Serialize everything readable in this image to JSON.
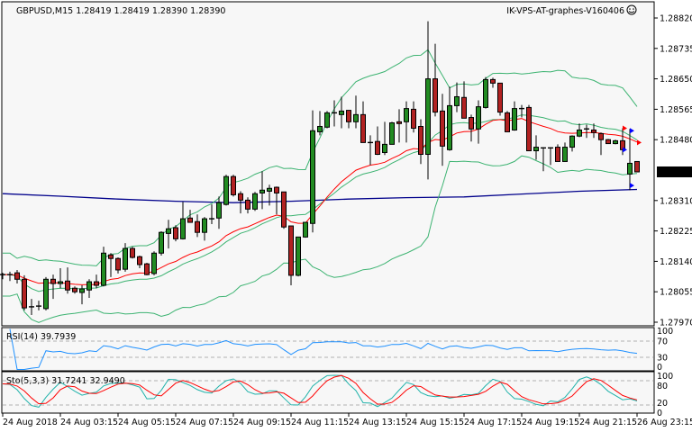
{
  "header": {
    "symbol_info": "GBPUSD,M15  1.28419 1.28419 1.28390 1.28390",
    "expert_label": "IK-VPS-AT-graphes-V160406",
    "expert_icon": "smiley-face-icon"
  },
  "colors": {
    "background": "#f7f7f7",
    "bull_candle": "#228b22",
    "bear_candle": "#b22222",
    "bollinger": "#3cb371",
    "moving_average": "#ff0000",
    "long_moving_average": "#00008b",
    "rsi_line": "#1e90ff",
    "sto_main": "#20b2aa",
    "sto_signal": "#ff0000",
    "current_price_bg": "#000000"
  },
  "chart_data": [
    {
      "type": "candlestick",
      "title": "GBPUSD,M15",
      "ylim": [
        1.2797,
        1.2882
      ],
      "y_ticks": [
        "1.28820",
        "1.28735",
        "1.28650",
        "1.28565",
        "1.28480",
        "1.28310",
        "1.28225",
        "1.28140",
        "1.28055",
        "1.27970"
      ],
      "current_price": "1.28390",
      "x_ticks": [
        "24 Aug 2018",
        "24 Aug 03:15",
        "24 Aug 05:15",
        "24 Aug 07:15",
        "24 Aug 09:15",
        "24 Aug 11:15",
        "24 Aug 13:15",
        "24 Aug 15:15",
        "24 Aug 17:15",
        "24 Aug 19:15",
        "24 Aug 21:15",
        "26 Aug 23:15"
      ],
      "ohlc": [
        [
          1.28101,
          1.28108,
          1.2809,
          1.28103
        ],
        [
          1.28103,
          1.28111,
          1.28085,
          1.28103
        ],
        [
          1.28108,
          1.28116,
          1.28078,
          1.2809
        ],
        [
          1.2809,
          1.28101,
          1.28003,
          1.2801
        ],
        [
          1.28013,
          1.28035,
          1.2799,
          1.28013
        ],
        [
          1.28013,
          1.2803,
          1.28003,
          1.28015
        ],
        [
          1.28008,
          1.28096,
          1.28003,
          1.2809
        ],
        [
          1.2809,
          1.28103,
          1.28035,
          1.28078
        ],
        [
          1.28078,
          1.28121,
          1.28065,
          1.28083
        ],
        [
          1.28085,
          1.28123,
          1.2805,
          1.2806
        ],
        [
          1.28065,
          1.2807,
          1.2805,
          1.28055
        ],
        [
          1.28053,
          1.28073,
          1.2802,
          1.28063
        ],
        [
          1.2806,
          1.2809,
          1.28038,
          1.28083
        ],
        [
          1.28083,
          1.28103,
          1.28065,
          1.28073
        ],
        [
          1.28073,
          1.28181,
          1.2807,
          1.28163
        ],
        [
          1.28158,
          1.28163,
          1.28096,
          1.28148
        ],
        [
          1.28148,
          1.28151,
          1.28106,
          1.28116
        ],
        [
          1.28118,
          1.28191,
          1.28111,
          1.28176
        ],
        [
          1.28176,
          1.28181,
          1.28148,
          1.28151
        ],
        [
          1.28153,
          1.28156,
          1.28121,
          1.28131
        ],
        [
          1.28133,
          1.28136,
          1.28101,
          1.28103
        ],
        [
          1.28106,
          1.28168,
          1.28101,
          1.28163
        ],
        [
          1.28163,
          1.28224,
          1.28156,
          1.28221
        ],
        [
          1.28218,
          1.28256,
          1.28176,
          1.28231
        ],
        [
          1.28234,
          1.28241,
          1.28196,
          1.28203
        ],
        [
          1.28203,
          1.28306,
          1.28201,
          1.28259
        ],
        [
          1.28261,
          1.28284,
          1.28249,
          1.28249
        ],
        [
          1.28251,
          1.28271,
          1.28208,
          1.28221
        ],
        [
          1.28221,
          1.28264,
          1.28198,
          1.28259
        ],
        [
          1.28259,
          1.28299,
          1.28244,
          1.28259
        ],
        [
          1.28261,
          1.28321,
          1.28231,
          1.28304
        ],
        [
          1.28299,
          1.28382,
          1.28296,
          1.28377
        ],
        [
          1.28377,
          1.28382,
          1.28321,
          1.28326
        ],
        [
          1.28329,
          1.28336,
          1.28274,
          1.28311
        ],
        [
          1.28311,
          1.28319,
          1.28274,
          1.28286
        ],
        [
          1.28286,
          1.28334,
          1.28281,
          1.28329
        ],
        [
          1.28331,
          1.28392,
          1.28286,
          1.28339
        ],
        [
          1.28336,
          1.28354,
          1.28296,
          1.28344
        ],
        [
          1.28347,
          1.28349,
          1.28271,
          1.28331
        ],
        [
          1.28334,
          1.28334,
          1.28231,
          1.28236
        ],
        [
          1.28239,
          1.28239,
          1.28073,
          1.28101
        ],
        [
          1.28101,
          1.28208,
          1.28098,
          1.28208
        ],
        [
          1.28208,
          1.28249,
          1.28206,
          1.28249
        ],
        [
          1.28246,
          1.28562,
          1.28221,
          1.28505
        ],
        [
          1.28502,
          1.2856,
          1.28492,
          1.28517
        ],
        [
          1.28515,
          1.2856,
          1.28512,
          1.28555
        ],
        [
          1.28555,
          1.2859,
          1.28517,
          1.28555
        ],
        [
          1.2855,
          1.286,
          1.28512,
          1.2856
        ],
        [
          1.28562,
          1.28562,
          1.28512,
          1.2853
        ],
        [
          1.2853,
          1.28603,
          1.28512,
          1.2855
        ],
        [
          1.2855,
          1.28587,
          1.28472,
          1.28472
        ],
        [
          1.28472,
          1.28492,
          1.28409,
          1.28472
        ],
        [
          1.28475,
          1.28517,
          1.28437,
          1.28439
        ],
        [
          1.28444,
          1.2853,
          1.28437,
          1.28467
        ],
        [
          1.28467,
          1.2853,
          1.28467,
          1.28527
        ],
        [
          1.2853,
          1.28565,
          1.28472,
          1.28525
        ],
        [
          1.2853,
          1.28587,
          1.28472,
          1.28567
        ],
        [
          1.28565,
          1.28587,
          1.285,
          1.28512
        ],
        [
          1.28517,
          1.28537,
          1.28412,
          1.28439
        ],
        [
          1.28439,
          1.28811,
          1.28369,
          1.2865
        ],
        [
          1.2865,
          1.28748,
          1.28545,
          1.28557
        ],
        [
          1.2856,
          1.28608,
          1.28407,
          1.28462
        ],
        [
          1.28452,
          1.28628,
          1.28449,
          1.28575
        ],
        [
          1.28575,
          1.2864,
          1.28557,
          1.286
        ],
        [
          1.28598,
          1.28643,
          1.2854,
          1.2854
        ],
        [
          1.28542,
          1.2855,
          1.28475,
          1.2851
        ],
        [
          1.2851,
          1.2859,
          1.28469,
          1.28572
        ],
        [
          1.2857,
          1.28655,
          1.28567,
          1.28648
        ],
        [
          1.28648,
          1.28653,
          1.28625,
          1.28638
        ],
        [
          1.28638,
          1.28638,
          1.28547,
          1.28557
        ],
        [
          1.28555,
          1.2856,
          1.28502,
          1.28502
        ],
        [
          1.28507,
          1.28587,
          1.28505,
          1.28567
        ],
        [
          1.28567,
          1.28577,
          1.28542,
          1.28567
        ],
        [
          1.2857,
          1.28577,
          1.28449,
          1.28449
        ],
        [
          1.28449,
          1.28492,
          1.28424,
          1.28459
        ],
        [
          1.28457,
          1.28459,
          1.28392,
          1.28457
        ],
        [
          1.28457,
          1.28459,
          1.28409,
          1.28457
        ],
        [
          1.28459,
          1.28467,
          1.28419,
          1.28419
        ],
        [
          1.28419,
          1.28472,
          1.28419,
          1.28459
        ],
        [
          1.28459,
          1.28492,
          1.28447,
          1.2849
        ],
        [
          1.2849,
          1.28525,
          1.28487,
          1.28507
        ],
        [
          1.2851,
          1.28522,
          1.28485,
          1.2851
        ],
        [
          1.28507,
          1.28525,
          1.28485,
          1.285
        ],
        [
          1.28497,
          1.285,
          1.28437,
          1.2848
        ],
        [
          1.2848,
          1.28482,
          1.28469,
          1.28469
        ],
        [
          1.28469,
          1.2848,
          1.28467,
          1.28477
        ],
        [
          1.28477,
          1.28512,
          1.28437,
          1.28452
        ],
        [
          1.28384,
          1.2851,
          1.28339,
          1.28414
        ],
        [
          1.28419,
          1.28419,
          1.2839,
          1.2839
        ]
      ],
      "long_ma_samples": [
        1.28329,
        1.28322,
        1.28314,
        1.28308,
        1.28304,
        1.28308,
        1.28314,
        1.28318,
        1.2832,
        1.28328,
        1.28336,
        1.28341
      ]
    },
    {
      "type": "line",
      "title": "RSI(14) 39.7939",
      "ylim": [
        0,
        100
      ],
      "levels": [
        30,
        70
      ],
      "y_ticks": [
        "100",
        "70",
        "30",
        "0"
      ]
    },
    {
      "type": "line",
      "title": "Sto(5,3,3) 31.7241 32.9490",
      "ylim": [
        0,
        100
      ],
      "levels": [
        20,
        80
      ],
      "y_ticks": [
        "100",
        "80",
        "20",
        "0"
      ]
    }
  ]
}
